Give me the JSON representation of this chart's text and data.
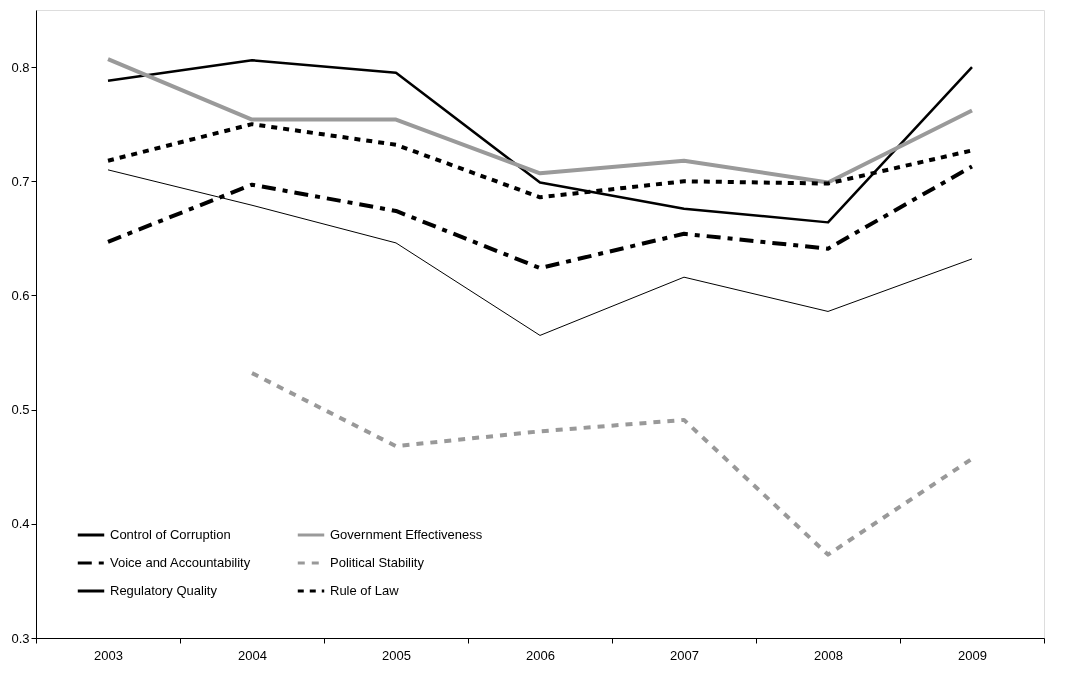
{
  "chart_data": {
    "type": "line",
    "categories": [
      "2003",
      "2004",
      "2005",
      "2006",
      "2007",
      "2008",
      "2009"
    ],
    "series": [
      {
        "name": "Control of Corruption",
        "color": "#000000",
        "line_style": "solid",
        "values": [
          0.788,
          0.806,
          0.795,
          0.699,
          0.676,
          0.664,
          0.8
        ]
      },
      {
        "name": "Government Effectiveness",
        "color": "#9a9a9a",
        "line_style": "solid",
        "values": [
          0.807,
          0.754,
          0.754,
          0.707,
          0.718,
          0.699,
          0.762
        ]
      },
      {
        "name": "Voice and Accountability",
        "color": "#000000",
        "line_style": "dashed",
        "values": [
          0.647,
          0.697,
          0.674,
          0.624,
          0.654,
          0.641,
          0.713
        ]
      },
      {
        "name": "Political Stability",
        "color": "#999999",
        "line_style": "dashed",
        "values": [
          null,
          0.532,
          0.468,
          0.481,
          0.491,
          0.373,
          0.457
        ]
      },
      {
        "name": "Regulatory Quality",
        "color": "#000000",
        "line_style": "solid",
        "values": [
          0.71,
          0.679,
          0.646,
          0.565,
          0.616,
          0.586,
          0.632
        ]
      },
      {
        "name": "Rule of Law",
        "color": "#000000",
        "line_style": "dotted",
        "values": [
          0.718,
          0.75,
          0.732,
          0.686,
          0.7,
          0.698,
          0.727
        ]
      }
    ],
    "ylim": [
      0.3,
      0.85
    ],
    "yticks": [
      0.3,
      0.4,
      0.5,
      0.6,
      0.7,
      0.8
    ],
    "grid": false,
    "legend": "bottom left",
    "marker": "none"
  }
}
